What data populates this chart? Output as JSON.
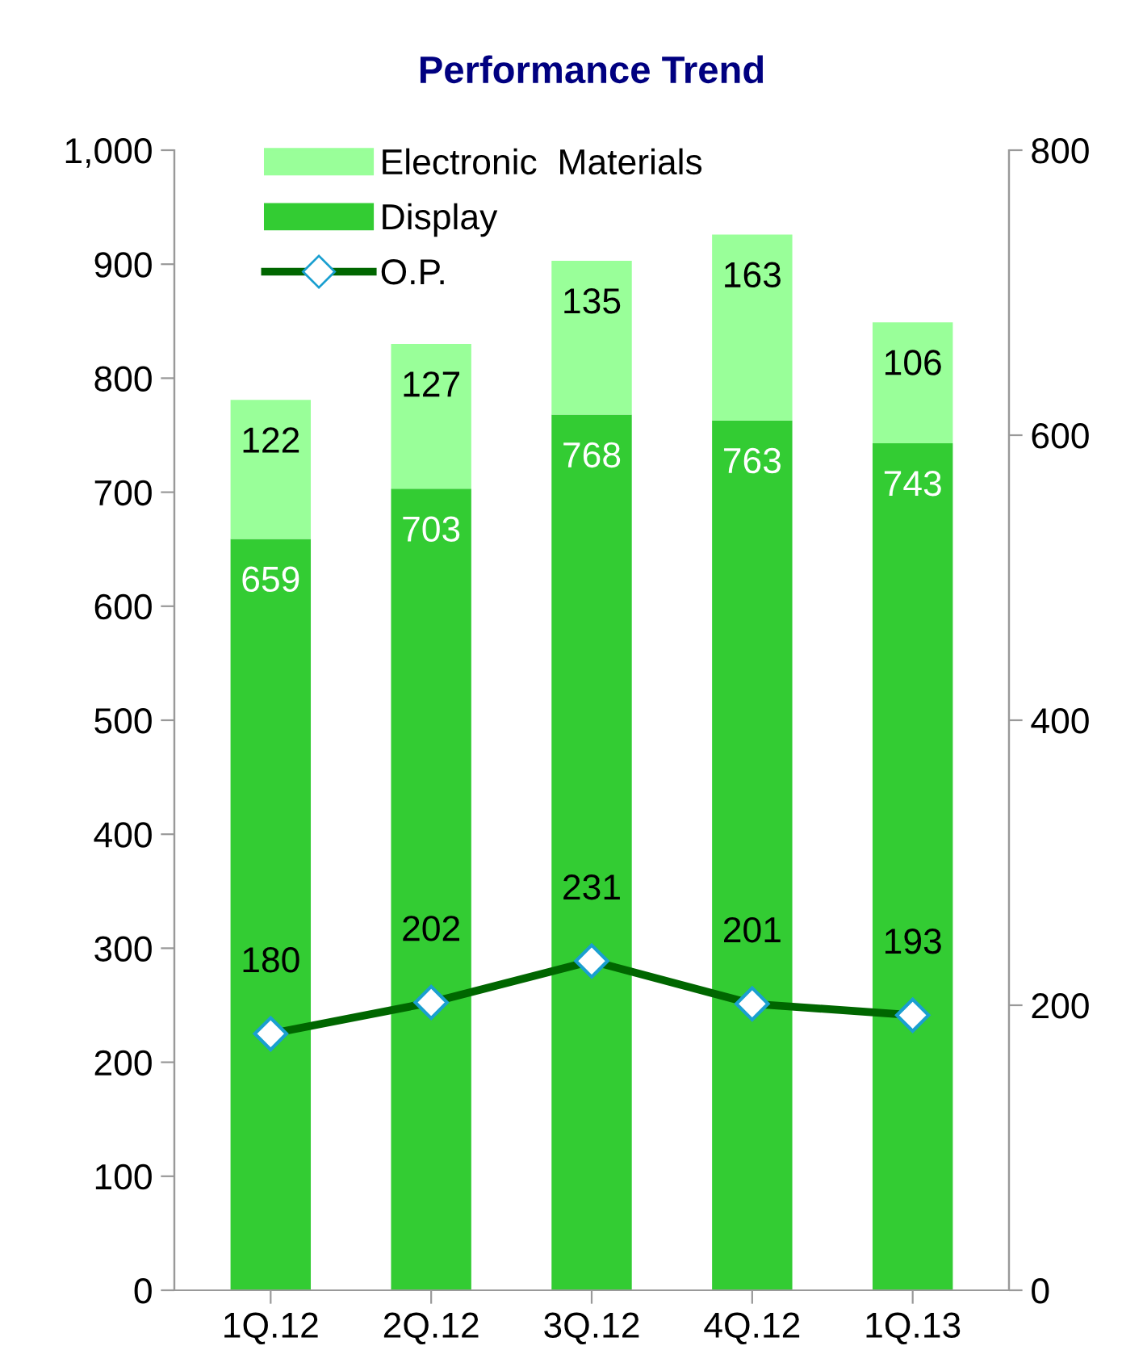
{
  "chart_data": {
    "type": "bar",
    "title": "Performance Trend",
    "categories": [
      "1Q.12",
      "2Q.12",
      "3Q.12",
      "4Q.12",
      "1Q.13"
    ],
    "stacked": true,
    "data_labels": true,
    "legend": "top left",
    "grid": false,
    "series": [
      {
        "name": "Display",
        "color": "#33cc33",
        "values": [
          659,
          703,
          768,
          763,
          743
        ]
      },
      {
        "name": "Electronic  Materials",
        "color": "#99ff99",
        "values": [
          122,
          127,
          135,
          163,
          106
        ]
      },
      {
        "name": "O.P.",
        "type": "line",
        "axis": "y2",
        "color": "#006600",
        "marker": "diamond",
        "values": [
          180,
          202,
          231,
          201,
          193
        ]
      }
    ],
    "ylim": [
      0,
      1000
    ],
    "yticks": [
      0,
      {
        "value": 100,
        "label": "100"
      },
      {
        "value": 200,
        "label": "200"
      },
      {
        "value": 300,
        "label": "300"
      },
      {
        "value": 400,
        "label": "400"
      },
      {
        "value": 500,
        "label": "500"
      },
      {
        "value": 600,
        "label": "600"
      },
      {
        "value": 700,
        "label": "700"
      },
      {
        "value": 800,
        "label": "800"
      },
      {
        "value": 900,
        "label": "900"
      },
      {
        "value": 1000,
        "label": "1,000"
      }
    ],
    "y2lim": [
      0,
      800
    ],
    "y2ticks": [
      0,
      200,
      400,
      600,
      800
    ]
  }
}
